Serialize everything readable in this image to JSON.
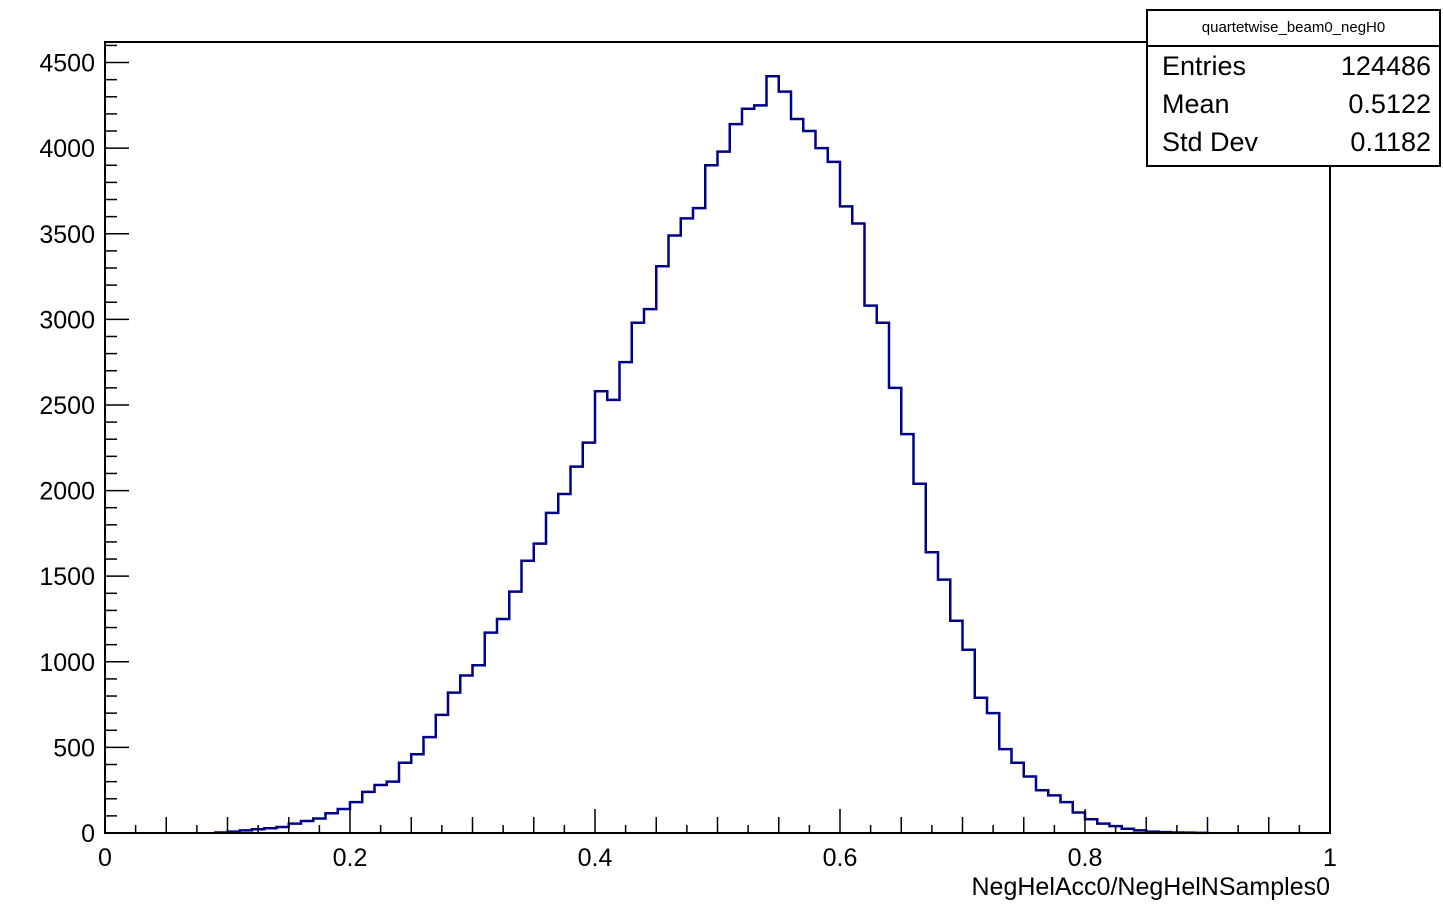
{
  "stats": {
    "title": "quartetwise_beam0_negH0",
    "rows": [
      {
        "label": "Entries",
        "value": "124486"
      },
      {
        "label": "Mean",
        "value": "0.5122"
      },
      {
        "label": "Std Dev",
        "value": "0.1182"
      }
    ]
  },
  "chart_data": {
    "type": "bar",
    "histogram": true,
    "title": "",
    "xlabel": "NegHelAcc0/NegHelNSamples0",
    "ylabel": "",
    "xlim": [
      0,
      1
    ],
    "ylim": [
      0,
      4620
    ],
    "x_ticks": [
      0,
      0.2,
      0.4,
      0.6,
      0.8,
      1
    ],
    "x_tick_labels": [
      "0",
      "0.2",
      "0.4",
      "0.6",
      "0.8",
      "1"
    ],
    "y_ticks": [
      0,
      500,
      1000,
      1500,
      2000,
      2500,
      3000,
      3500,
      4000,
      4500
    ],
    "y_tick_labels": [
      "0",
      "500",
      "1000",
      "1500",
      "2000",
      "2500",
      "3000",
      "3500",
      "4000",
      "4500"
    ],
    "grid": false,
    "line_color": "#00008b",
    "bin_width": 0.01,
    "bin_low_edges": [
      0.09,
      0.1,
      0.11,
      0.12,
      0.13,
      0.14,
      0.15,
      0.16,
      0.17,
      0.18,
      0.19,
      0.2,
      0.21,
      0.22,
      0.23,
      0.24,
      0.25,
      0.26,
      0.27,
      0.28,
      0.29,
      0.3,
      0.31,
      0.32,
      0.33,
      0.34,
      0.35,
      0.36,
      0.37,
      0.38,
      0.39,
      0.4,
      0.41,
      0.42,
      0.43,
      0.44,
      0.45,
      0.46,
      0.47,
      0.48,
      0.49,
      0.5,
      0.51,
      0.52,
      0.53,
      0.54,
      0.55,
      0.56,
      0.57,
      0.58,
      0.59,
      0.6,
      0.61,
      0.62,
      0.63,
      0.64,
      0.65,
      0.66,
      0.67,
      0.68,
      0.69,
      0.7,
      0.71,
      0.72,
      0.73,
      0.74,
      0.75,
      0.76,
      0.77,
      0.78,
      0.79,
      0.8,
      0.81,
      0.82,
      0.83,
      0.84,
      0.85,
      0.86,
      0.87,
      0.88,
      0.89
    ],
    "values": [
      3,
      8,
      15,
      22,
      28,
      35,
      55,
      70,
      85,
      115,
      140,
      180,
      240,
      280,
      300,
      410,
      460,
      560,
      690,
      820,
      920,
      980,
      1170,
      1250,
      1410,
      1590,
      1690,
      1870,
      1980,
      2140,
      2280,
      2580,
      2530,
      2750,
      2980,
      3060,
      3310,
      3490,
      3590,
      3650,
      3900,
      3980,
      4140,
      4230,
      4250,
      4420,
      4330,
      4170,
      4100,
      4000,
      3920,
      3660,
      3560,
      3080,
      2980,
      2600,
      2330,
      2040,
      1640,
      1480,
      1240,
      1070,
      790,
      700,
      490,
      410,
      330,
      250,
      220,
      180,
      120,
      80,
      55,
      40,
      25,
      15,
      8,
      5,
      3,
      2,
      1
    ]
  }
}
